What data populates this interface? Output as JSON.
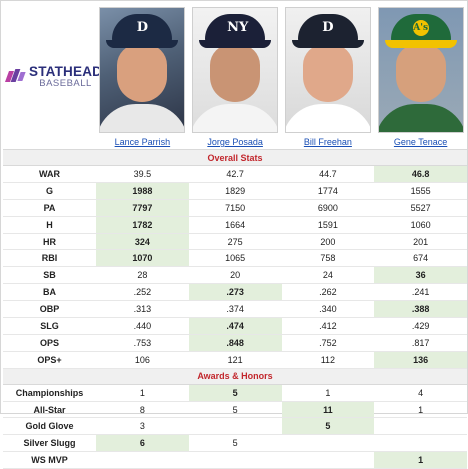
{
  "brand": {
    "top": "STATHEAD",
    "bottom": "BASEBALL"
  },
  "players": [
    {
      "name": "Lance Parrish",
      "photo_icon": "player-photo-tigers-cap",
      "cap_mark": "D",
      "cap_color": "#1c2a44",
      "face_color": "#d9a07e",
      "jersey_color": "#e8e8e8"
    },
    {
      "name": "Jorge Posada",
      "photo_icon": "player-photo-yankees-cap",
      "cap_mark": "NY",
      "cap_color": "#1b2038",
      "face_color": "#c99474",
      "jersey_color": "#f4f4f4"
    },
    {
      "name": "Bill Freehan",
      "photo_icon": "player-photo-tigers-cap",
      "cap_mark": "D",
      "cap_color": "#1c2230",
      "face_color": "#e0a88a",
      "jersey_color": "#ffffff"
    },
    {
      "name": "Gene Tenace",
      "photo_icon": "player-photo-athletics-cap",
      "cap_mark": "A's",
      "cap_color": "#1f6a3a",
      "face_color": "#d6a07c",
      "jersey_color": "#2e6a3a",
      "visor_color": "#f2c200"
    }
  ],
  "sections": {
    "overall": "Overall Stats",
    "awards": "Awards & Honors"
  },
  "overall_stats": [
    {
      "label": "WAR",
      "values": [
        "39.5",
        "42.7",
        "44.7",
        "46.8"
      ],
      "best": [
        false,
        false,
        false,
        true
      ]
    },
    {
      "label": "G",
      "values": [
        "1988",
        "1829",
        "1774",
        "1555"
      ],
      "best": [
        true,
        false,
        false,
        false
      ]
    },
    {
      "label": "PA",
      "values": [
        "7797",
        "7150",
        "6900",
        "5527"
      ],
      "best": [
        true,
        false,
        false,
        false
      ]
    },
    {
      "label": "H",
      "values": [
        "1782",
        "1664",
        "1591",
        "1060"
      ],
      "best": [
        true,
        false,
        false,
        false
      ]
    },
    {
      "label": "HR",
      "values": [
        "324",
        "275",
        "200",
        "201"
      ],
      "best": [
        true,
        false,
        false,
        false
      ]
    },
    {
      "label": "RBI",
      "values": [
        "1070",
        "1065",
        "758",
        "674"
      ],
      "best": [
        true,
        false,
        false,
        false
      ]
    },
    {
      "label": "SB",
      "values": [
        "28",
        "20",
        "24",
        "36"
      ],
      "best": [
        false,
        false,
        false,
        true
      ]
    },
    {
      "label": "BA",
      "values": [
        ".252",
        ".273",
        ".262",
        ".241"
      ],
      "best": [
        false,
        true,
        false,
        false
      ]
    },
    {
      "label": "OBP",
      "values": [
        ".313",
        ".374",
        ".340",
        ".388"
      ],
      "best": [
        false,
        false,
        false,
        true
      ]
    },
    {
      "label": "SLG",
      "values": [
        ".440",
        ".474",
        ".412",
        ".429"
      ],
      "best": [
        false,
        true,
        false,
        false
      ]
    },
    {
      "label": "OPS",
      "values": [
        ".753",
        ".848",
        ".752",
        ".817"
      ],
      "best": [
        false,
        true,
        false,
        false
      ]
    },
    {
      "label": "OPS+",
      "values": [
        "106",
        "121",
        "112",
        "136"
      ],
      "best": [
        false,
        false,
        false,
        true
      ]
    }
  ],
  "awards": [
    {
      "label": "Championships",
      "values": [
        "1",
        "5",
        "1",
        "4"
      ],
      "best": [
        false,
        true,
        false,
        false
      ]
    },
    {
      "label": "All-Star",
      "values": [
        "8",
        "5",
        "11",
        "1"
      ],
      "best": [
        false,
        false,
        true,
        false
      ]
    },
    {
      "label": "Gold Glove",
      "values": [
        "3",
        "",
        "5",
        ""
      ],
      "best": [
        false,
        false,
        true,
        false
      ]
    },
    {
      "label": "Silver Slugg",
      "values": [
        "6",
        "5",
        "",
        ""
      ],
      "best": [
        true,
        false,
        false,
        false
      ]
    },
    {
      "label": "WS MVP",
      "values": [
        "",
        "",
        "",
        "1"
      ],
      "best": [
        false,
        false,
        false,
        true
      ]
    }
  ]
}
